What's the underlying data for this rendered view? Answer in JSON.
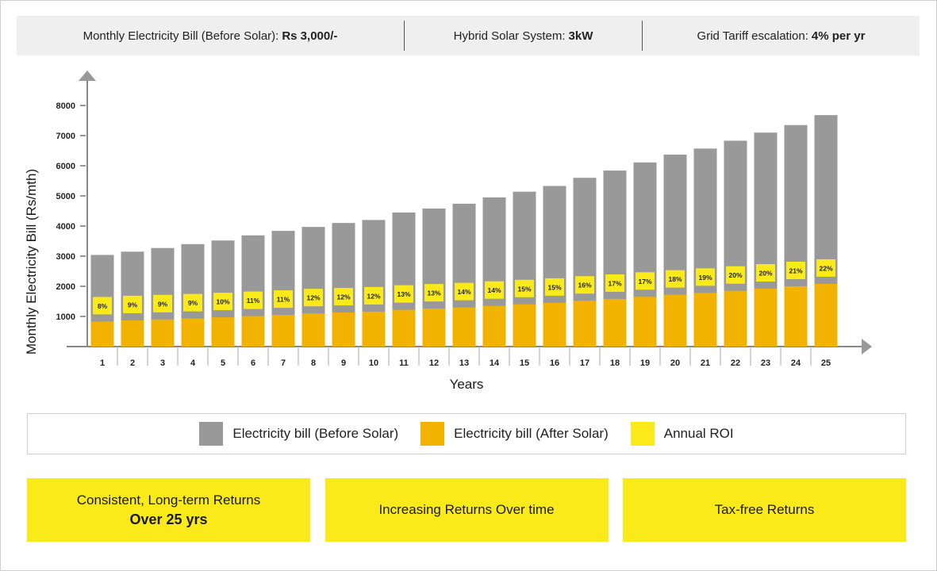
{
  "header": {
    "items": [
      {
        "label": "Monthly Electricity Bill (Before Solar):",
        "value": "Rs 3,000/-"
      },
      {
        "label": "Hybrid Solar System:",
        "value": "3kW"
      },
      {
        "label": "Grid Tariff escalation:",
        "value": "4% per yr"
      }
    ]
  },
  "chart_data": {
    "type": "bar",
    "xlabel": "Years",
    "ylabel": "Monthly Electricity Bill (Rs/mth)",
    "ylim": [
      0,
      8000
    ],
    "yticks": [
      1000,
      2000,
      3000,
      4000,
      5000,
      6000,
      7000,
      8000
    ],
    "categories": [
      "1",
      "2",
      "3",
      "4",
      "5",
      "6",
      "7",
      "8",
      "9",
      "10",
      "11",
      "12",
      "13",
      "14",
      "15",
      "16",
      "17",
      "18",
      "19",
      "20",
      "21",
      "22",
      "23",
      "24",
      "25"
    ],
    "series": [
      {
        "name": "Electricity bill (Before Solar)",
        "color": "#999999",
        "values": [
          3040,
          3150,
          3270,
          3400,
          3520,
          3690,
          3840,
          3970,
          4100,
          4200,
          4450,
          4580,
          4740,
          4950,
          5140,
          5330,
          5600,
          5840,
          6110,
          6370,
          6570,
          6830,
          7100,
          7350,
          7680
        ]
      },
      {
        "name": "Electricity bill (After Solar)",
        "color": "#f2b200",
        "values": [
          830,
          870,
          900,
          930,
          970,
          1010,
          1050,
          1100,
          1130,
          1160,
          1220,
          1260,
          1300,
          1350,
          1400,
          1450,
          1520,
          1580,
          1650,
          1720,
          1780,
          1850,
          1920,
          2000,
          2080
        ]
      },
      {
        "name": "Annual ROI",
        "color": "#fbea1a",
        "values": [
          "8%",
          "9%",
          "9%",
          "9%",
          "10%",
          "11%",
          "11%",
          "12%",
          "12%",
          "12%",
          "13%",
          "13%",
          "14%",
          "14%",
          "15%",
          "15%",
          "16%",
          "17%",
          "17%",
          "18%",
          "19%",
          "20%",
          "20%",
          "21%",
          "22%"
        ]
      }
    ]
  },
  "legend": {
    "items": [
      {
        "label": "Electricity bill (Before Solar)",
        "color": "#999999"
      },
      {
        "label": "Electricity bill (After Solar)",
        "color": "#f2b200"
      },
      {
        "label": "Annual ROI",
        "color": "#fbea1a"
      }
    ]
  },
  "cards": [
    {
      "line1": "Consistent, Long-term Returns",
      "line2": "Over 25 yrs"
    },
    {
      "line1": "Increasing Returns Over time",
      "line2": ""
    },
    {
      "line1": "Tax-free Returns",
      "line2": ""
    }
  ]
}
